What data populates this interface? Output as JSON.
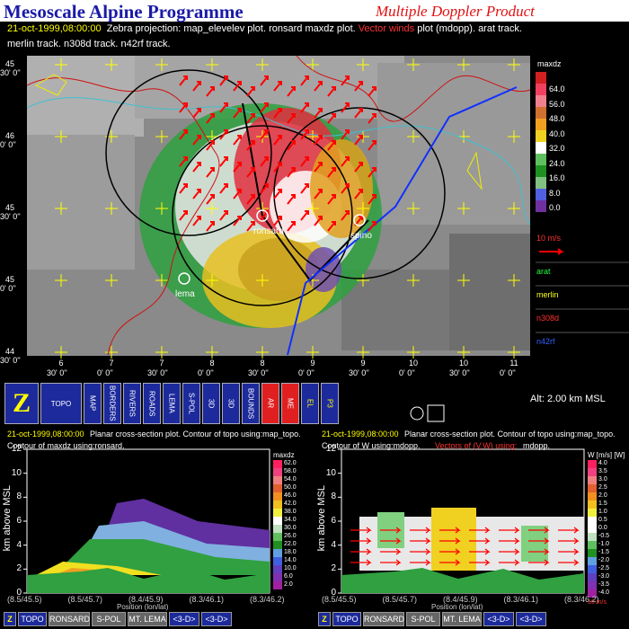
{
  "header": {
    "title": "Mesoscale Alpine Programme",
    "subtitle": "Multiple Doppler Product"
  },
  "info": {
    "date": "21-oct-1999,08:00:00",
    "line1": "Zebra projection: map_elevelev plot.  ronsard maxdz plot.",
    "line1_red": "Vector winds",
    "line1_end": "plot (mdopp).  arat track.",
    "line2": "merlin track.   n308d track.   n42rf track."
  },
  "map": {
    "lat_labels": [
      [
        "45",
        "30' 0''"
      ],
      [
        "46",
        "0' 0''"
      ],
      [
        "45",
        "30' 0''"
      ],
      [
        "45",
        "0' 0''"
      ],
      [
        "44",
        "30' 0''"
      ]
    ],
    "lon_labels": [
      [
        "6",
        "30' 0''"
      ],
      [
        "7",
        "0' 0''"
      ],
      [
        "7",
        "30' 0''"
      ],
      [
        "8",
        "0' 0''"
      ],
      [
        "8",
        "30' 0''"
      ],
      [
        "9",
        "0' 0''"
      ],
      [
        "9",
        "30' 0''"
      ],
      [
        "10",
        "0' 0''"
      ],
      [
        "10",
        "30' 0''"
      ],
      [
        "11",
        "0' 0''"
      ]
    ],
    "stations": [
      "ronsard",
      "spino",
      "lema"
    ],
    "colorbar_title": "maxdz",
    "colorbar_labels": [
      "64.0",
      "56.0",
      "48.0",
      "40.0",
      "32.0",
      "24.0",
      "16.0",
      "8.0",
      "0.0"
    ],
    "vector_scale": "10 m/s",
    "tracks": [
      "arat",
      "merlin",
      "n308d",
      "n42rf"
    ]
  },
  "toolbar": {
    "buttons": [
      "Z",
      "TOPO",
      "MAP",
      "BORDERS",
      "RIVERS",
      "ROADS",
      "LEMA",
      "S-POL",
      "3D",
      "3D",
      "BOUNDS",
      "AR",
      "ME",
      "EL",
      "P3"
    ],
    "altitude": "Alt: 2.00 km MSL"
  },
  "panels": [
    {
      "date": "21-oct-1999,08:00:00",
      "line1": "Planar cross-section plot.  Contour of topo using:map_topo.",
      "line2": "Contour of maxdz using:ronsard.",
      "line2_red": null,
      "line2_end": null,
      "colorbar_title": "maxdz",
      "colorbar_labels": [
        "62.0",
        "58.0",
        "54.0",
        "50.0",
        "46.0",
        "42.0",
        "38.0",
        "34.0",
        "30.0",
        "26.0",
        "22.0",
        "18.0",
        "14.0",
        "10.0",
        "6.0",
        "2.0"
      ],
      "y_label": "km above MSL",
      "x_label": "Position (lon/lat)",
      "yticks": [
        "0",
        "2",
        "4",
        "6",
        "8",
        "10",
        "12"
      ],
      "xticks": [
        "(8.5/45.5)",
        "(8.5/45.7)",
        "(8.4/45.9)",
        "(8.3/46.1)",
        "(8.3/46.2)"
      ],
      "buttons": [
        "Z",
        "TOPO",
        "RONSARD",
        "S-POL",
        "MT. LEMA",
        "<3-D>",
        "<3-D>"
      ]
    },
    {
      "date": "21-oct-1999,08:00:00",
      "line1": "Planar cross-section plot.  Contour of topo using:map_topo.",
      "line2": "Contour of W using:mdopp.",
      "line2_red": "Vectors of (V,W) using:",
      "line2_end": "mdopp.",
      "colorbar_title": "W [m/s] [W]",
      "colorbar_labels": [
        "4.0",
        "3.5",
        "3.0",
        "2.5",
        "2.0",
        "1.5",
        "1.0",
        "0.5",
        "0.0",
        "-0.5",
        "-1.0",
        "-1.5",
        "-2.0",
        "-2.5",
        "-3.0",
        "-3.5",
        "-4.0"
      ],
      "vector_scale": "10 m/s",
      "y_label": "km above MSL",
      "x_label": "Position (lon/lat)",
      "yticks": [
        "0",
        "2",
        "4",
        "6",
        "8",
        "10",
        "12"
      ],
      "xticks": [
        "(8.5/45.5)",
        "(8.5/45.7)",
        "(8.4/45.9)",
        "(8.3/46.1)",
        "(8.3/46.2)"
      ],
      "buttons": [
        "Z",
        "TOPO",
        "RONSARD",
        "S-POL",
        "MT. LEMA",
        "<3-D>",
        "<3-D>"
      ]
    }
  ]
}
